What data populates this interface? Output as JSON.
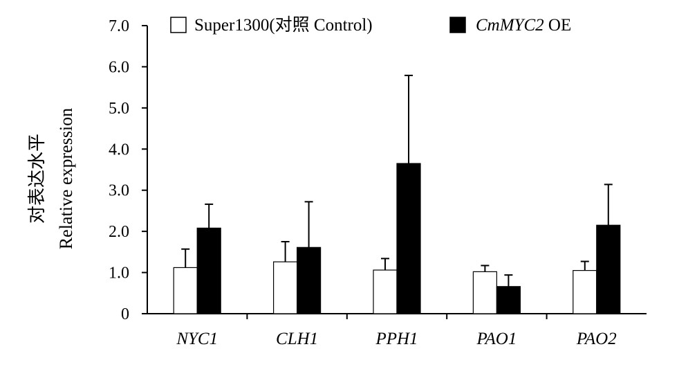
{
  "chart_data": {
    "type": "bar",
    "title": "",
    "xlabel": "",
    "ylabel_zh": "对表达水平",
    "ylabel": "Relative expression",
    "ylim": [
      0,
      7
    ],
    "yticks": [
      "0",
      "1.0",
      "2.0",
      "3.0",
      "4.0",
      "5.0",
      "6.0",
      "7.0"
    ],
    "ytick_values": [
      0,
      1,
      2,
      3,
      4,
      5,
      6,
      7
    ],
    "categories": [
      "NYC1",
      "CLH1",
      "PPH1",
      "PAO1",
      "PAO2"
    ],
    "grid": false,
    "legend_position": "top",
    "series": [
      {
        "name": "Super1300(对照 Control)",
        "color": "#ffffff",
        "values": [
          1.12,
          1.26,
          1.06,
          1.02,
          1.05
        ],
        "errors": [
          0.45,
          0.49,
          0.28,
          0.15,
          0.22
        ]
      },
      {
        "name_italic": "CmMYC2",
        "name_rest": " OE",
        "color": "#000000",
        "values": [
          2.08,
          1.61,
          3.65,
          0.66,
          2.15
        ],
        "errors": [
          0.58,
          1.11,
          2.14,
          0.28,
          0.99
        ]
      }
    ]
  }
}
